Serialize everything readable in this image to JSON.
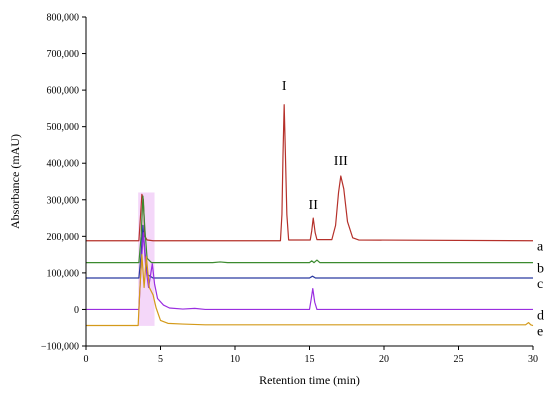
{
  "chart_data": {
    "type": "line",
    "xlabel": "Retention time (min)",
    "ylabel": "Absorbance (mAU)",
    "xlim": [
      0,
      30
    ],
    "ylim": [
      -100000,
      800000
    ],
    "x_ticks": [
      0,
      5,
      10,
      15,
      20,
      25,
      30
    ],
    "x_tick_labels": [
      "0",
      "5",
      "10",
      "15",
      "20",
      "25",
      "30"
    ],
    "y_ticks": [
      -100000,
      0,
      100000,
      200000,
      300000,
      400000,
      500000,
      600000,
      700000,
      800000
    ],
    "y_tick_labels": [
      "−100,000",
      "0",
      "100,000",
      "200,000",
      "300,000",
      "400,000",
      "500,000",
      "600,000",
      "700,000",
      "800,000"
    ],
    "grid": false,
    "series": [
      {
        "name": "a",
        "color": "#b5302a",
        "baseline": 188000,
        "points": [
          [
            0,
            188000
          ],
          [
            3.55,
            188000
          ],
          [
            3.65,
            250000
          ],
          [
            3.75,
            315000
          ],
          [
            3.85,
            300000
          ],
          [
            3.95,
            200000
          ],
          [
            4.1,
            190000
          ],
          [
            4.5,
            188000
          ],
          [
            13.05,
            188000
          ],
          [
            13.15,
            260000
          ],
          [
            13.22,
            420000
          ],
          [
            13.3,
            560000
          ],
          [
            13.38,
            430000
          ],
          [
            13.48,
            260000
          ],
          [
            13.6,
            190000
          ],
          [
            15.05,
            190000
          ],
          [
            15.15,
            215000
          ],
          [
            15.25,
            250000
          ],
          [
            15.38,
            210000
          ],
          [
            15.5,
            191000
          ],
          [
            16.5,
            191000
          ],
          [
            16.75,
            230000
          ],
          [
            16.95,
            320000
          ],
          [
            17.1,
            365000
          ],
          [
            17.3,
            330000
          ],
          [
            17.55,
            240000
          ],
          [
            17.9,
            196000
          ],
          [
            18.3,
            190000
          ],
          [
            30,
            188000
          ]
        ]
      },
      {
        "name": "b",
        "color": "#3b8a2e",
        "baseline": 128000,
        "points": [
          [
            0,
            128000
          ],
          [
            3.55,
            128000
          ],
          [
            3.7,
            200000
          ],
          [
            3.82,
            310000
          ],
          [
            3.95,
            220000
          ],
          [
            4.1,
            140000
          ],
          [
            4.4,
            128000
          ],
          [
            8.5,
            128000
          ],
          [
            9.0,
            130000
          ],
          [
            9.5,
            128000
          ],
          [
            15.0,
            128000
          ],
          [
            15.15,
            133000
          ],
          [
            15.3,
            128000
          ],
          [
            15.5,
            135000
          ],
          [
            15.7,
            128000
          ],
          [
            30,
            128000
          ]
        ]
      },
      {
        "name": "c",
        "color": "#2a3aa0",
        "baseline": 86000,
        "points": [
          [
            0,
            86000
          ],
          [
            3.55,
            86000
          ],
          [
            3.7,
            150000
          ],
          [
            3.82,
            230000
          ],
          [
            3.95,
            160000
          ],
          [
            4.1,
            96000
          ],
          [
            4.5,
            86000
          ],
          [
            15.0,
            86000
          ],
          [
            15.2,
            91000
          ],
          [
            15.4,
            86000
          ],
          [
            30,
            86000
          ]
        ]
      },
      {
        "name": "d",
        "color": "#9a2ee0",
        "baseline": 0,
        "points": [
          [
            0,
            0
          ],
          [
            3.55,
            0
          ],
          [
            3.7,
            120000
          ],
          [
            3.85,
            210000
          ],
          [
            4.0,
            120000
          ],
          [
            4.2,
            60000
          ],
          [
            4.45,
            125000
          ],
          [
            4.6,
            70000
          ],
          [
            4.8,
            30000
          ],
          [
            5.2,
            12000
          ],
          [
            5.6,
            4000
          ],
          [
            6.5,
            1000
          ],
          [
            7.3,
            3000
          ],
          [
            8.0,
            0
          ],
          [
            15.0,
            0
          ],
          [
            15.1,
            25000
          ],
          [
            15.22,
            57000
          ],
          [
            15.35,
            20000
          ],
          [
            15.5,
            0
          ],
          [
            30,
            0
          ]
        ]
      },
      {
        "name": "e",
        "color": "#d49a1a",
        "baseline": -44000,
        "points": [
          [
            0,
            -44000
          ],
          [
            3.5,
            -44000
          ],
          [
            3.62,
            60000
          ],
          [
            3.75,
            150000
          ],
          [
            3.9,
            60000
          ],
          [
            4.05,
            145000
          ],
          [
            4.25,
            60000
          ],
          [
            4.5,
            40000
          ],
          [
            4.7,
            5000
          ],
          [
            5.0,
            -30000
          ],
          [
            5.5,
            -38000
          ],
          [
            6.5,
            -40000
          ],
          [
            8.0,
            -42000
          ],
          [
            12.0,
            -42000
          ],
          [
            17.0,
            -42000
          ],
          [
            29.5,
            -42000
          ],
          [
            29.7,
            -36000
          ],
          [
            29.85,
            -42000
          ],
          [
            30,
            -44000
          ]
        ]
      }
    ],
    "annotations": [
      {
        "text": "I",
        "x": 13.3,
        "y": 600000
      },
      {
        "text": "II",
        "x": 15.25,
        "y": 275000
      },
      {
        "text": "III",
        "x": 17.1,
        "y": 395000
      }
    ]
  }
}
